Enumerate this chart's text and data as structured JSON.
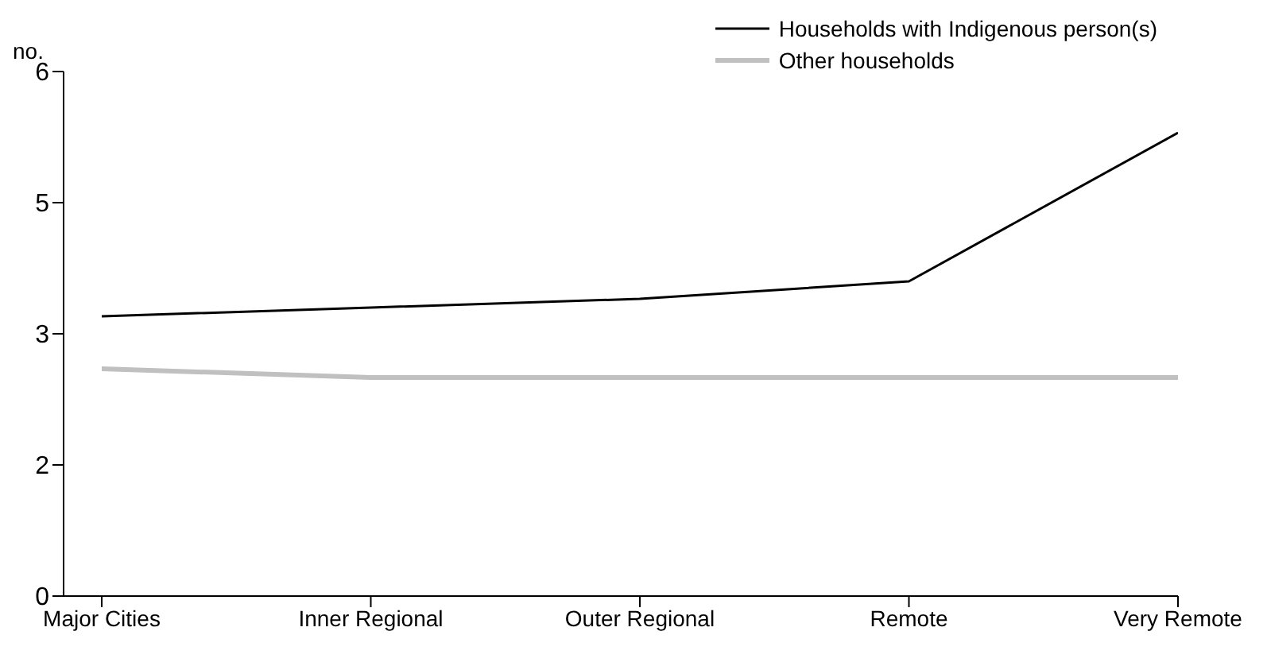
{
  "chart_data": {
    "type": "line",
    "ylabel": "no.",
    "categories": [
      "Major Cities",
      "Inner Regional",
      "Outer Regional",
      "Remote",
      "Very Remote"
    ],
    "series": [
      {
        "name": "Households with Indigenous person(s)",
        "color": "#000000",
        "values": [
          3.2,
          3.3,
          3.4,
          3.6,
          5.3
        ]
      },
      {
        "name": "Other households",
        "color": "#c0c0c0",
        "values": [
          2.6,
          2.5,
          2.5,
          2.5,
          2.5
        ]
      }
    ],
    "ylim": [
      0,
      6
    ],
    "yticks": [
      {
        "value": 0,
        "label": "0"
      },
      {
        "value": 1.5,
        "label": "2"
      },
      {
        "value": 3,
        "label": "3"
      },
      {
        "value": 4.5,
        "label": "5"
      },
      {
        "value": 6,
        "label": "6"
      }
    ],
    "grid": false,
    "legend": "top right",
    "marker": "none",
    "line_style": "solid"
  }
}
